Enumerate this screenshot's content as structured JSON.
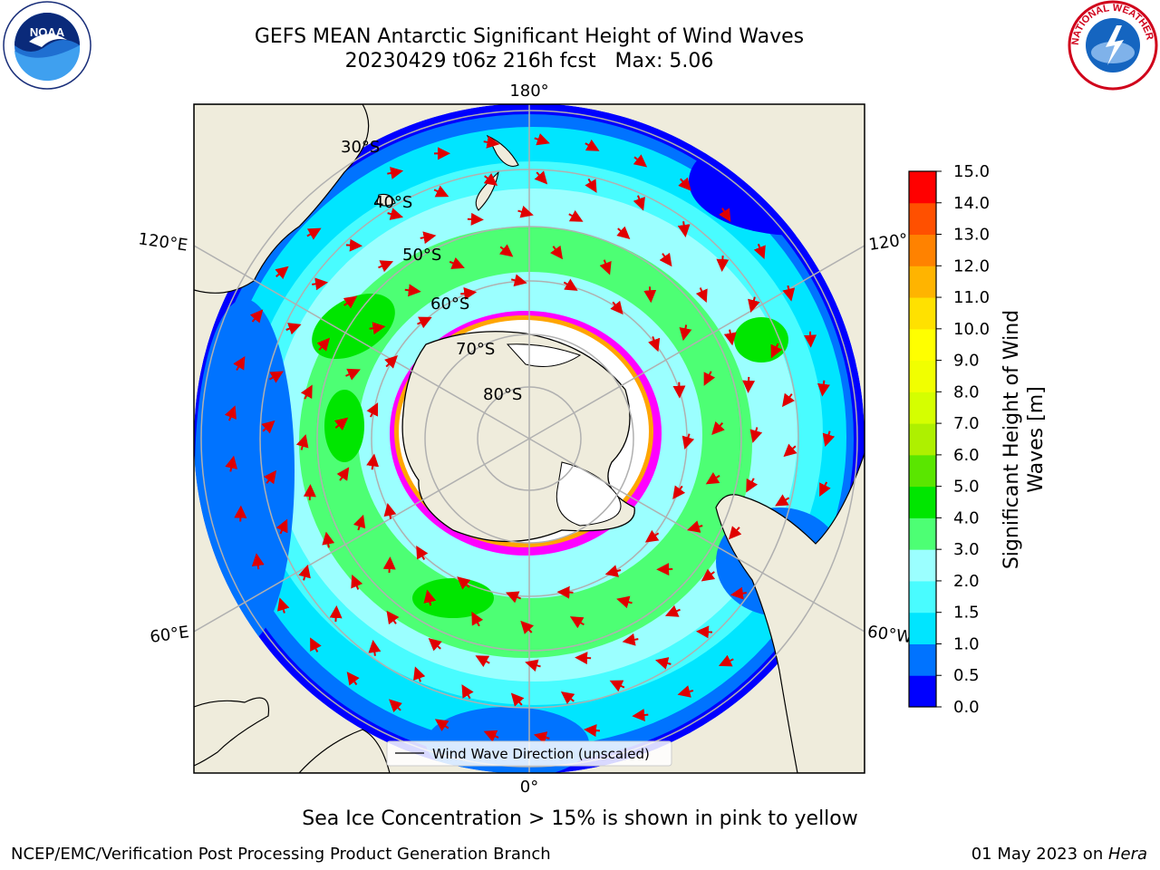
{
  "title": {
    "line1": "GEFS MEAN Antarctic Significant Height of Wind Waves",
    "line2": "20230429 t06z 216h fcst   Max: 5.06"
  },
  "map": {
    "projection": "south-polar-stereographic",
    "lon_labels": [
      "180°",
      "120°E",
      "120°",
      "60°E",
      "60°W",
      "0°"
    ],
    "lat_labels": [
      "30°S",
      "40°S",
      "50°S",
      "60°S",
      "70°S",
      "80°S"
    ],
    "legend_label": "Wind Wave Direction (unscaled)",
    "arrow_color": "#e00000",
    "land_color": "#efecdc",
    "sea_ice_colors": [
      "#ff00ff",
      "#ffa500",
      "#ffff00"
    ]
  },
  "colorbar": {
    "label": "Significant Height of Wind Waves [m]",
    "label_line1": "Significant Height of Wind",
    "label_line2": "Waves [m]",
    "ticks": [
      "15.0",
      "14.0",
      "13.0",
      "12.0",
      "11.0",
      "10.0",
      "9.0",
      "8.0",
      "7.0",
      "6.0",
      "5.0",
      "4.0",
      "3.0",
      "2.0",
      "1.5",
      "1.0",
      "0.5",
      "0.0"
    ],
    "levels": [
      0.0,
      0.5,
      1.0,
      1.5,
      2.0,
      3.0,
      4.0,
      5.0,
      6.0,
      7.0,
      8.0,
      9.0,
      10.0,
      11.0,
      12.0,
      13.0,
      14.0,
      15.0
    ],
    "colors": [
      "#0000ff",
      "#0073ff",
      "#00e5ff",
      "#49fcff",
      "#9bffff",
      "#4dff74",
      "#00e600",
      "#5ae600",
      "#aef000",
      "#d5ff00",
      "#f1ff00",
      "#ffff00",
      "#ffe100",
      "#ffb400",
      "#ff8200",
      "#ff5000",
      "#ff0000"
    ]
  },
  "logos": {
    "noaa_text": "NOAA",
    "nws_text": "NATIONAL WEATHER SERVICE"
  },
  "sea_ice_note": "Sea Ice Concentration > 15% is shown in pink to yellow",
  "footer": {
    "left": "NCEP/EMC/Verification Post Processing Product Generation Branch",
    "right_date": "01 May 2023 on ",
    "right_host": "Hera"
  }
}
